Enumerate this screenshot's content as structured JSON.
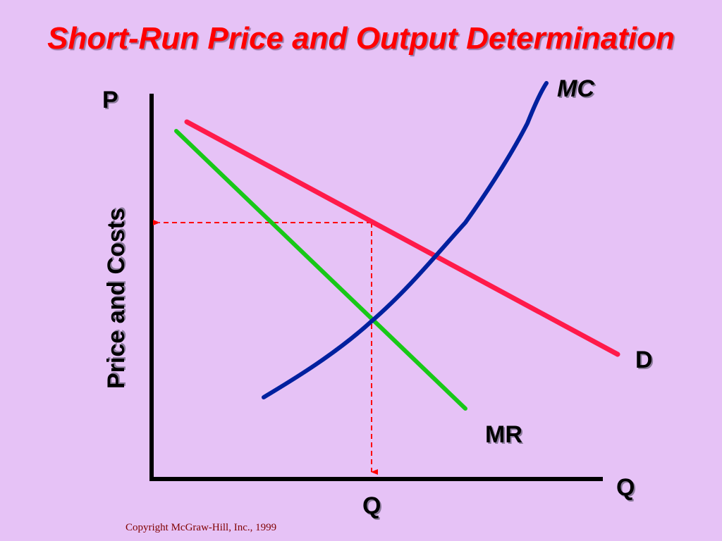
{
  "title": "Short-Run Price and Output Determination",
  "axes": {
    "y_top_label": "P",
    "y_axis_label": "Price and Costs",
    "x_end_label": "Q",
    "x_mark_label": "Q"
  },
  "curves": {
    "mc": {
      "label": "MC",
      "color": "#00209f"
    },
    "d": {
      "label": "D",
      "color": "#ff1a4a"
    },
    "mr": {
      "label": "MR",
      "color": "#18c818"
    }
  },
  "guide_color": "#ff0000",
  "copyright": "Copyright McGraw-Hill, Inc., 1999"
}
